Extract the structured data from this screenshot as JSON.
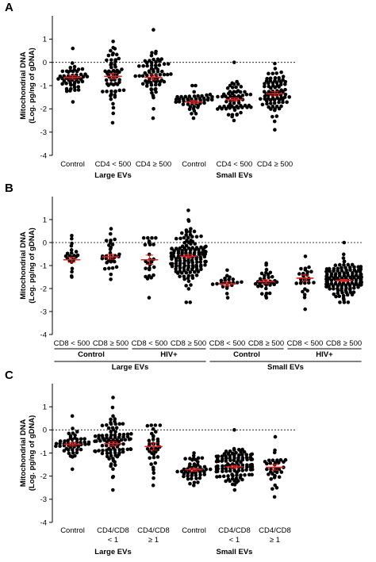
{
  "chart_data": [
    {
      "type": "scatter",
      "panel": "A",
      "ylabel": "Mitochondrial DNA (Log. pg/ng of gDNA)",
      "ylim": [
        -4,
        2
      ],
      "yticks": [
        -4,
        -3,
        -2,
        -1,
        0,
        1
      ],
      "reference_line": 0,
      "categories": [
        {
          "label": "Control",
          "n": 50,
          "mean": -0.65,
          "sd": 0.33,
          "min": -1.7,
          "max": 0.6
        },
        {
          "label": "CD4 < 500",
          "n": 60,
          "mean": -0.6,
          "sd": 0.6,
          "min": -2.6,
          "max": 0.9
        },
        {
          "label": "CD4 ≥ 500",
          "n": 70,
          "mean": -0.65,
          "sd": 0.55,
          "min": -2.4,
          "max": 1.4
        },
        {
          "label": "Control",
          "n": 50,
          "mean": -1.7,
          "sd": 0.28,
          "min": -2.4,
          "max": -1.0
        },
        {
          "label": "CD4 < 500",
          "n": 65,
          "mean": -1.6,
          "sd": 0.35,
          "min": -2.5,
          "max": 0.0
        },
        {
          "label": "CD4 ≥ 500",
          "n": 80,
          "mean": -1.35,
          "sd": 0.5,
          "min": -2.9,
          "max": -0.05
        }
      ],
      "groups": [
        {
          "label": "Large EVs",
          "from": 0,
          "to": 2
        },
        {
          "label": "Small EVs",
          "from": 3,
          "to": 5
        }
      ]
    },
    {
      "type": "scatter",
      "panel": "B",
      "ylabel": "Mitochondrial DNA (Log. pg/ng of gDNA)",
      "ylim": [
        -4,
        2
      ],
      "yticks": [
        -4,
        -3,
        -2,
        -1,
        0,
        1
      ],
      "reference_line": 0,
      "categories": [
        {
          "label": "CD8 < 500",
          "n": 22,
          "mean": -0.75,
          "sd": 0.32,
          "min": -1.5,
          "max": 0.3
        },
        {
          "label": "CD8 ≥ 500",
          "n": 32,
          "mean": -0.62,
          "sd": 0.38,
          "min": -1.6,
          "max": 0.6
        },
        {
          "label": "CD8 < 500",
          "n": 26,
          "mean": -0.75,
          "sd": 0.65,
          "min": -2.4,
          "max": 0.2
        },
        {
          "label": "CD8 ≥ 500",
          "n": 140,
          "mean": -0.6,
          "sd": 0.55,
          "min": -2.6,
          "max": 1.4
        },
        {
          "label": "CD8 < 500",
          "n": 22,
          "mean": -1.8,
          "sd": 0.25,
          "min": -2.4,
          "max": -1.2
        },
        {
          "label": "CD8 ≥ 500",
          "n": 34,
          "mean": -1.7,
          "sd": 0.32,
          "min": -2.4,
          "max": -0.9
        },
        {
          "label": "CD8 < 500",
          "n": 28,
          "mean": -1.55,
          "sd": 0.45,
          "min": -2.9,
          "max": -0.6
        },
        {
          "label": "CD8 ≥ 500",
          "n": 150,
          "mean": -1.65,
          "sd": 0.35,
          "min": -2.6,
          "max": 0.0
        }
      ],
      "subgroups": [
        {
          "label": "Control",
          "from": 0,
          "to": 1
        },
        {
          "label": "HIV+",
          "from": 2,
          "to": 3
        },
        {
          "label": "Control",
          "from": 4,
          "to": 5
        },
        {
          "label": "HIV+",
          "from": 6,
          "to": 7
        }
      ],
      "groups": [
        {
          "label": "Large EVs",
          "from": 0,
          "to": 3
        },
        {
          "label": "Small EVs",
          "from": 4,
          "to": 7
        }
      ]
    },
    {
      "type": "scatter",
      "panel": "C",
      "ylabel": "Mitochondrial DNA (Log. pg/ng of gDNA)",
      "ylim": [
        -4,
        2
      ],
      "yticks": [
        -4,
        -3,
        -2,
        -1,
        0,
        1
      ],
      "reference_line": 0,
      "categories": [
        {
          "label": "Control",
          "n": 50,
          "mean": -0.62,
          "sd": 0.33,
          "min": -1.7,
          "max": 0.6
        },
        {
          "label": "CD4/CD8 < 1",
          "n": 95,
          "mean": -0.6,
          "sd": 0.55,
          "min": -2.6,
          "max": 1.4
        },
        {
          "label": "CD4/CD8 ≥ 1",
          "n": 38,
          "mean": -0.72,
          "sd": 0.6,
          "min": -2.4,
          "max": 0.2
        },
        {
          "label": "Control",
          "n": 50,
          "mean": -1.72,
          "sd": 0.28,
          "min": -2.4,
          "max": -1.0
        },
        {
          "label": "CD4/CD8 < 1",
          "n": 110,
          "mean": -1.6,
          "sd": 0.38,
          "min": -2.6,
          "max": 0.0
        },
        {
          "label": "CD4/CD8 ≥ 1",
          "n": 35,
          "mean": -1.62,
          "sd": 0.45,
          "min": -2.9,
          "max": -0.3
        }
      ],
      "groups": [
        {
          "label": "Large EVs",
          "from": 0,
          "to": 2
        },
        {
          "label": "Small EVs",
          "from": 3,
          "to": 5
        }
      ]
    }
  ],
  "colors": {
    "points": "#000000",
    "mean": "#e02020"
  }
}
